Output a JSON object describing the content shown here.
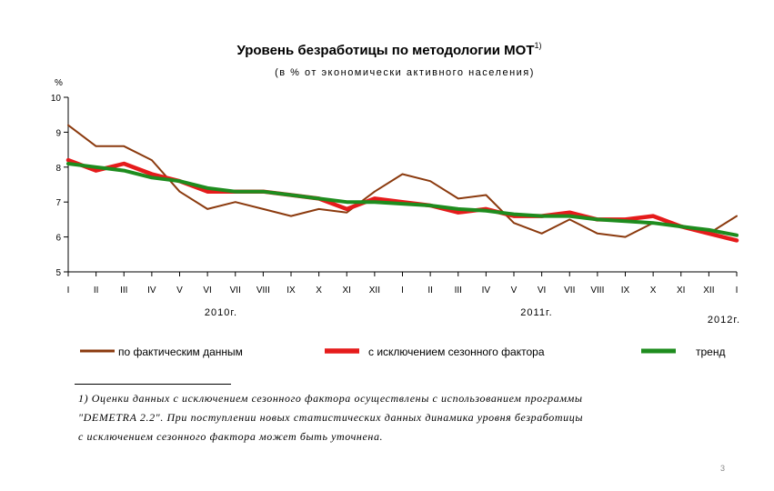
{
  "chart_data": {
    "type": "line",
    "title": "Уровень безработицы по методологии МОТ",
    "title_superscript": "1)",
    "subtitle": "(в % от экономически активного населения)",
    "ylabel": "%",
    "ylim": [
      5,
      10
    ],
    "yticks": [
      "10",
      "9",
      "8",
      "7",
      "6",
      "5"
    ],
    "categories": [
      "I",
      "II",
      "III",
      "IV",
      "V",
      "VI",
      "VII",
      "VIII",
      "IX",
      "X",
      "XI",
      "XII",
      "I",
      "II",
      "III",
      "IV",
      "V",
      "VI",
      "VII",
      "VIII",
      "IX",
      "X",
      "XI",
      "XII",
      "I"
    ],
    "year_labels": [
      "2010г.",
      "2011г.",
      "2012г."
    ],
    "grid": false,
    "legend_position": "bottom",
    "series": [
      {
        "name": "по фактическим данным",
        "color": "#8B3A0E",
        "values": [
          9.2,
          8.6,
          8.6,
          8.2,
          7.3,
          6.8,
          7.0,
          6.8,
          6.6,
          6.8,
          6.7,
          7.3,
          7.8,
          7.6,
          7.1,
          7.2,
          6.4,
          6.1,
          6.5,
          6.1,
          6.0,
          6.4,
          6.3,
          6.1,
          6.6
        ]
      },
      {
        "name": "с исключением сезонного фактора",
        "color": "#E51B1B",
        "values": [
          8.2,
          7.9,
          8.1,
          7.8,
          7.6,
          7.3,
          7.3,
          7.3,
          7.2,
          7.1,
          6.8,
          7.1,
          7.0,
          6.9,
          6.7,
          6.8,
          6.6,
          6.6,
          6.7,
          6.5,
          6.5,
          6.6,
          6.3,
          6.1,
          5.9
        ]
      },
      {
        "name": "тренд",
        "color": "#1E8C1E",
        "values": [
          8.1,
          8.0,
          7.9,
          7.7,
          7.6,
          7.4,
          7.3,
          7.3,
          7.2,
          7.1,
          7.0,
          7.0,
          6.95,
          6.9,
          6.8,
          6.75,
          6.65,
          6.6,
          6.6,
          6.5,
          6.45,
          6.4,
          6.3,
          6.2,
          6.05
        ]
      }
    ]
  },
  "footnote": {
    "lines": [
      "1) Оценки данных с исключением сезонного фактора осуществлены с использованием программы",
      "\"DEMETRA 2.2\". При поступлении новых статистических данных динамика уровня безработицы",
      "с исключением сезонного фактора может быть уточнена."
    ]
  },
  "page_number": "3"
}
